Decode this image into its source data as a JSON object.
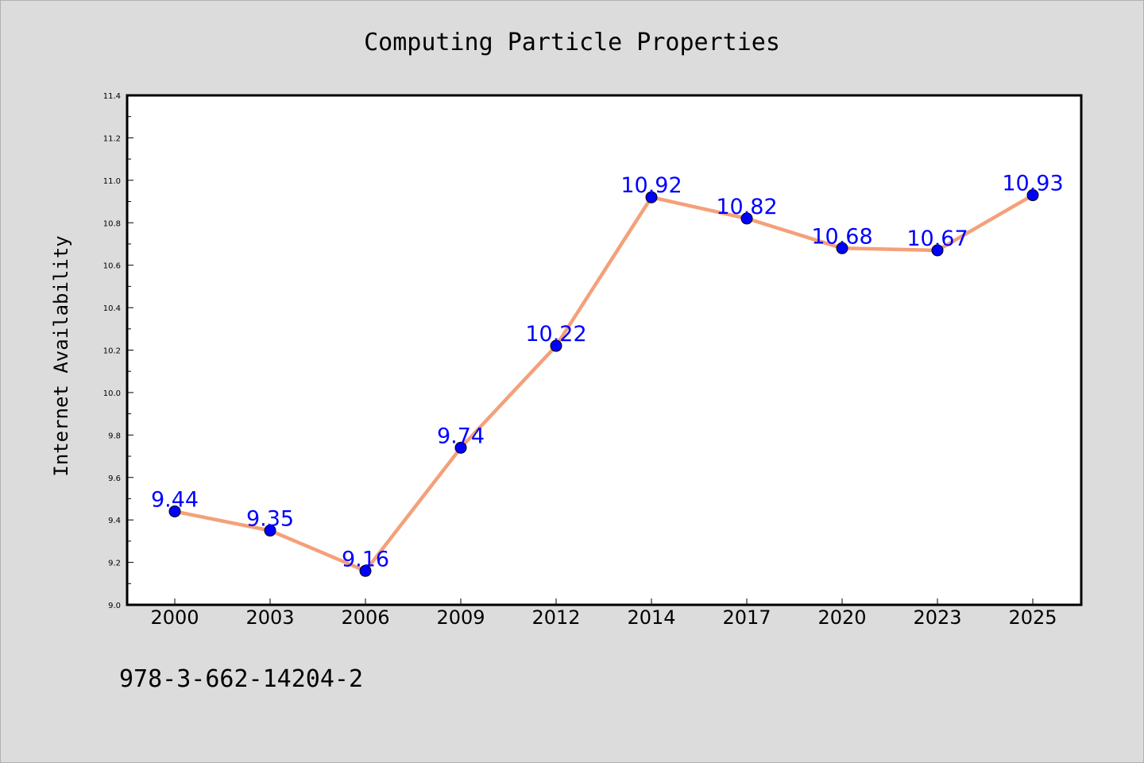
{
  "chart_data": {
    "type": "line",
    "title": "Computing Particle Properties",
    "xlabel": "",
    "ylabel": "Internet Availability",
    "categories": [
      "2000",
      "2003",
      "2006",
      "2009",
      "2012",
      "2014",
      "2017",
      "2020",
      "2023",
      "2025"
    ],
    "values": [
      9.44,
      9.35,
      9.16,
      9.74,
      10.22,
      10.92,
      10.82,
      10.68,
      10.67,
      10.93
    ],
    "data_labels": [
      "9.44",
      "9.35",
      "9.16",
      "9.74",
      "10.22",
      "10.92",
      "10.82",
      "10.68",
      "10.67",
      "10.93"
    ],
    "ylim": [
      9.0,
      11.4
    ],
    "yticks": [
      "9.0",
      "9.2",
      "9.4",
      "9.6",
      "9.8",
      "10.0",
      "10.2",
      "10.4",
      "10.6",
      "10.8",
      "11.0",
      "11.2",
      "11.4"
    ],
    "grid": false,
    "legend": "none",
    "colors": {
      "line": "#f4a07a",
      "marker": "#0000ff",
      "label": "#0000ff",
      "background": "#dcdcdc",
      "plot_background": "#ffffff"
    }
  },
  "footer": {
    "isbn": "978-3-662-14204-2"
  }
}
